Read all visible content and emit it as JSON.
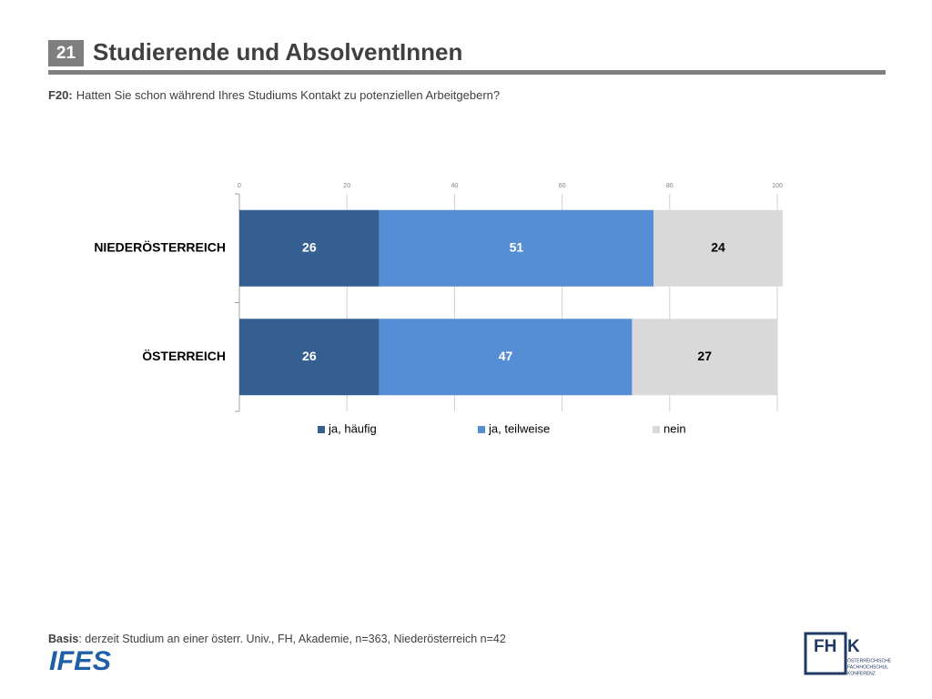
{
  "slide_number": "21",
  "title": "Studierende und AbsolventInnen",
  "question": {
    "label": "F20:",
    "text": "Hatten Sie schon während Ihres Studiums Kontakt zu potenziellen Arbeitgebern?"
  },
  "chart_data": {
    "type": "stacked_bar_horizontal",
    "categories": [
      "NIEDERÖSTERREICH",
      "ÖSTERREICH"
    ],
    "series": [
      {
        "name": "ja, häufig",
        "color": "#365f91",
        "label_color": "#ffffff",
        "values": [
          26,
          26
        ]
      },
      {
        "name": "ja, teilweise",
        "color": "#558ed5",
        "label_color": "#ffffff",
        "values": [
          51,
          47
        ]
      },
      {
        "name": "nein",
        "color": "#d9d9d9",
        "label_color": "#000000",
        "values": [
          24,
          27
        ]
      }
    ],
    "xlim": [
      0,
      100
    ],
    "xticks": [
      0,
      20,
      40,
      60,
      80,
      100
    ],
    "grid": true,
    "legend": "bottom"
  },
  "footer": {
    "label": "Basis",
    "text": ": derzeit Studium an einer österr. Univ., FH, Akademie, n=363, Niederösterreich n=42"
  },
  "logos": {
    "ifes": "IFES",
    "fhk_left": "FH",
    "fhk_right": "K",
    "fhk_lines": [
      "ÖSTERREICHISCHE",
      "FACHHOCHSCHUL",
      "KONFERENZ"
    ]
  }
}
